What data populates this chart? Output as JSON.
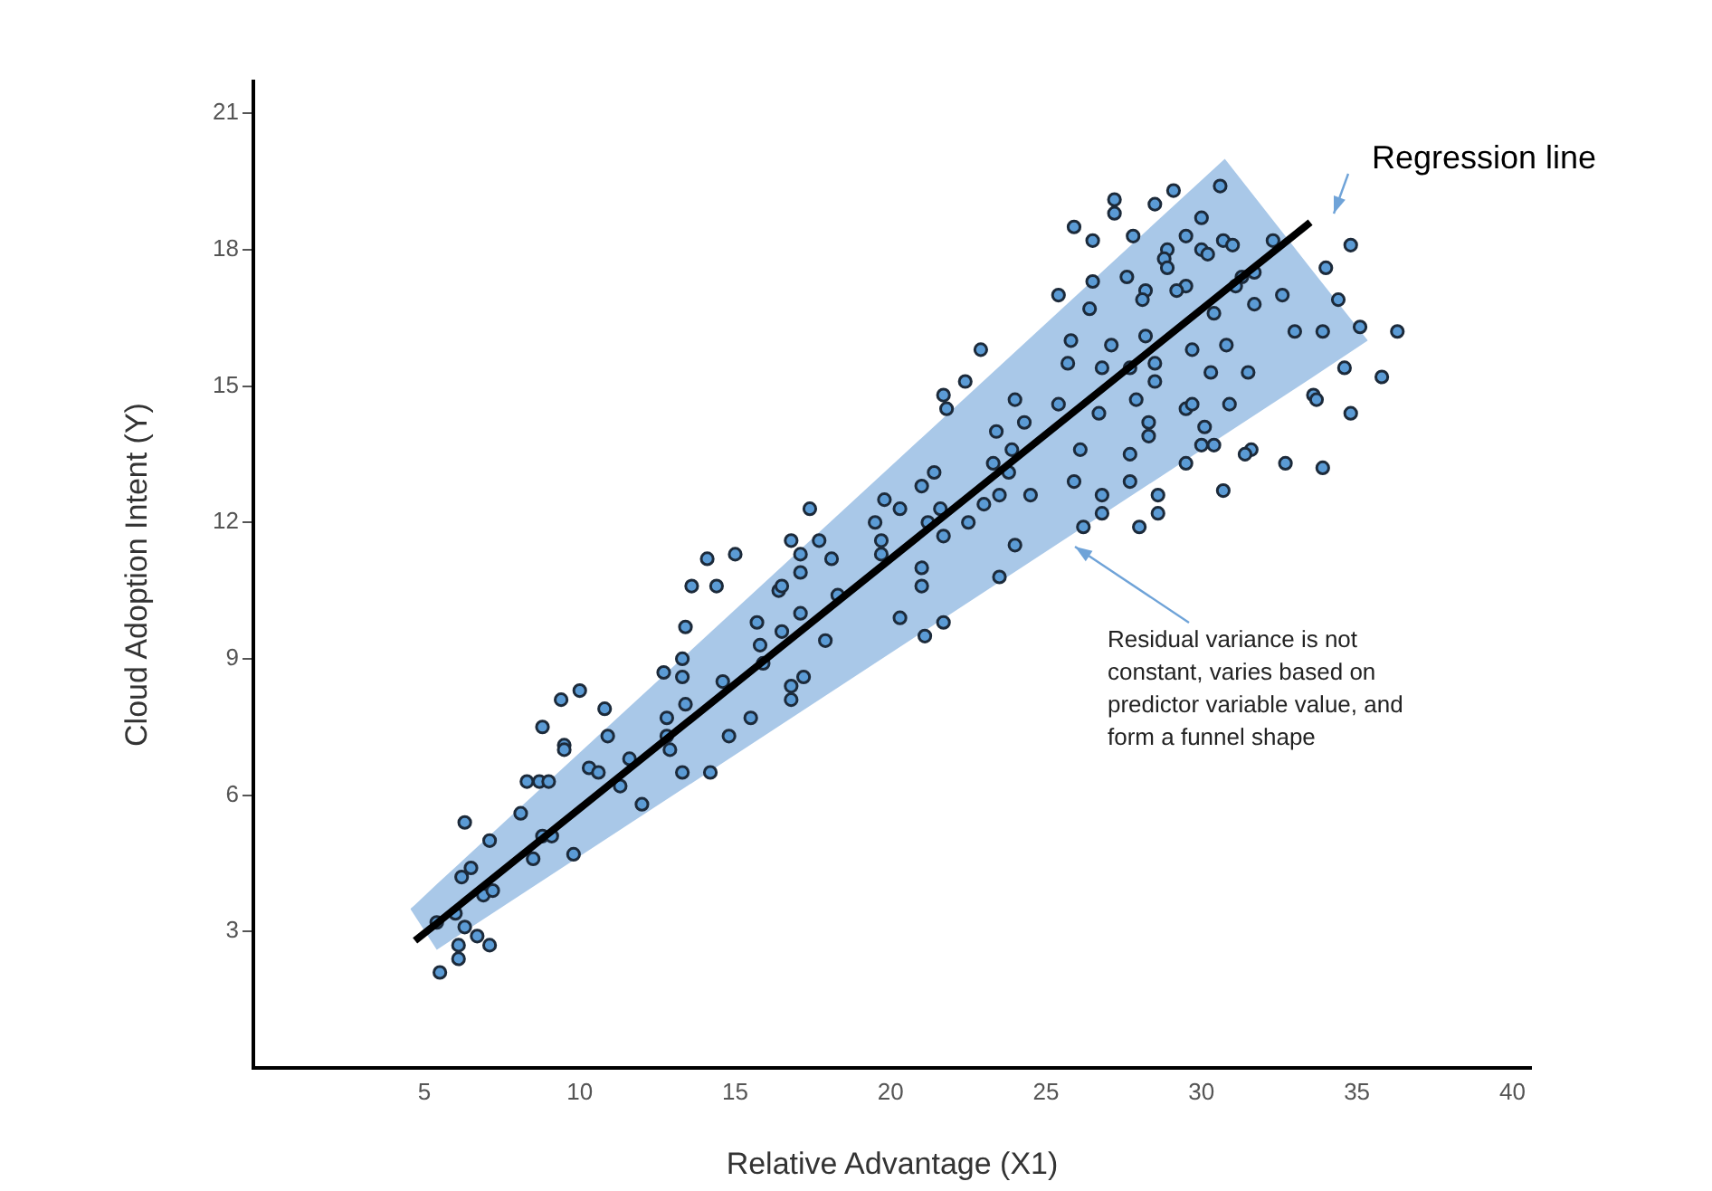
{
  "chart_data": {
    "type": "scatter",
    "xlabel": "Relative Advantage (X1)",
    "ylabel": "Cloud Adoption Intent (Y)",
    "xlim": [
      -0.5,
      40.6
    ],
    "xticks": [
      5,
      10,
      15,
      20,
      25,
      30,
      35,
      40
    ],
    "ylim": [
      0,
      21.7
    ],
    "yticks": [
      3,
      6,
      9,
      12,
      15,
      18,
      21
    ],
    "grid": false,
    "legend": false,
    "marker": "circle",
    "annotations": [
      "Regression line",
      "Residual variance is not constant, varies based on predictor variable value, and form a funnel shape"
    ],
    "series": [
      {
        "color": "#5b9bd5",
        "x": [
          5.5,
          6.1,
          7.1,
          6.7,
          6.1,
          6.3,
          5.4,
          6.0,
          6.9,
          7.2,
          6.2,
          6.5,
          8.5,
          9.8,
          6.3,
          7.1,
          8.1,
          8.8,
          9.1,
          8.3,
          8.7,
          9.0,
          8.8,
          9.5,
          9.5,
          9.4,
          10.0,
          10.8,
          10.3,
          10.6,
          10.9,
          11.3,
          11.6,
          12.0,
          12.8,
          12.8,
          12.9,
          13.3,
          14.2,
          14.8,
          15.5,
          13.4,
          13.3,
          14.6,
          12.7,
          13.3,
          13.4,
          13.6,
          14.4,
          14.1,
          15.0,
          15.7,
          15.8,
          15.9,
          16.5,
          16.4,
          16.5,
          16.8,
          16.8,
          16.8,
          17.4,
          17.1,
          17.1,
          17.7,
          18.1,
          18.3,
          17.1,
          17.9,
          17.2,
          19.5,
          19.7,
          19.7,
          19.8,
          20.3,
          21.0,
          21.4,
          21.2,
          21.6,
          21.7,
          22.5,
          21.0,
          21.0,
          20.3,
          21.1,
          21.7,
          23.5,
          24.0,
          23.0,
          23.5,
          23.3,
          23.8,
          23.9,
          24.5,
          23.4,
          24.0,
          24.3,
          25.4,
          25.7,
          25.8,
          25.9,
          26.1,
          21.8,
          21.7,
          22.4,
          22.9,
          25.4,
          30.6,
          29.1,
          28.5,
          27.2,
          27.2,
          25.9,
          26.5,
          27.8,
          30.0,
          29.5,
          30.7,
          31.0,
          32.3,
          28.9,
          28.8,
          28.9,
          30.0,
          30.2,
          31.3,
          31.7,
          31.1,
          29.5,
          29.2,
          28.2,
          28.1,
          27.6,
          26.5,
          26.4,
          31.7,
          32.6,
          30.4,
          33.0,
          33.9,
          34.4,
          34.0,
          34.8,
          35.1,
          36.3,
          34.6,
          35.8,
          33.6,
          33.7,
          34.8,
          27.1,
          28.2,
          29.7,
          30.8,
          26.8,
          27.7,
          28.5,
          28.5,
          30.3,
          31.5,
          26.7,
          27.9,
          28.3,
          28.3,
          29.5,
          29.7,
          30.9,
          30.1,
          30.0,
          30.4,
          27.7,
          29.5,
          31.6,
          31.4,
          32.7,
          33.9,
          27.7,
          26.8,
          28.6,
          26.8,
          28.6,
          30.7,
          26.2,
          28.0
        ],
        "values": [
          2.1,
          2.4,
          2.7,
          2.9,
          2.7,
          3.1,
          3.2,
          3.4,
          3.8,
          3.9,
          4.2,
          4.4,
          4.6,
          4.7,
          5.4,
          5.0,
          5.6,
          5.1,
          5.1,
          6.3,
          6.3,
          6.3,
          7.5,
          7.1,
          7.0,
          8.1,
          8.3,
          7.9,
          6.6,
          6.5,
          7.3,
          6.2,
          6.8,
          5.8,
          7.7,
          7.3,
          7.0,
          6.5,
          6.5,
          7.3,
          7.7,
          8.0,
          8.6,
          8.5,
          8.7,
          9.0,
          9.7,
          10.6,
          10.6,
          11.2,
          11.3,
          9.8,
          9.3,
          8.9,
          9.6,
          10.5,
          10.6,
          11.6,
          8.4,
          8.1,
          12.3,
          11.3,
          10.9,
          11.6,
          11.2,
          10.4,
          10.0,
          9.4,
          8.6,
          12.0,
          11.6,
          11.3,
          12.5,
          12.3,
          12.8,
          13.1,
          12.0,
          12.3,
          11.7,
          12.0,
          11.0,
          10.6,
          9.9,
          9.5,
          9.8,
          10.8,
          11.5,
          12.4,
          12.6,
          13.3,
          13.1,
          13.6,
          12.6,
          14.0,
          14.7,
          14.2,
          14.6,
          15.5,
          16.0,
          12.9,
          13.6,
          14.5,
          14.8,
          15.1,
          15.8,
          17.0,
          19.4,
          19.3,
          19.0,
          19.1,
          18.8,
          18.5,
          18.2,
          18.3,
          18.7,
          18.3,
          18.2,
          18.1,
          18.2,
          18.0,
          17.8,
          17.6,
          18.0,
          17.9,
          17.4,
          17.5,
          17.2,
          17.2,
          17.1,
          17.1,
          16.9,
          17.4,
          17.3,
          16.7,
          16.8,
          17.0,
          16.6,
          16.2,
          16.2,
          16.9,
          17.6,
          18.1,
          16.3,
          16.2,
          15.4,
          15.2,
          14.8,
          14.7,
          14.4,
          15.9,
          16.1,
          15.8,
          15.9,
          15.4,
          15.4,
          15.5,
          15.1,
          15.3,
          15.3,
          14.4,
          14.7,
          14.2,
          13.9,
          14.5,
          14.6,
          14.6,
          14.1,
          13.7,
          13.7,
          13.5,
          13.3,
          13.6,
          13.5,
          13.3,
          13.2,
          12.9,
          12.6,
          12.6,
          12.2,
          12.2,
          12.7,
          11.9,
          11.9
        ]
      },
      {
        "type": "line",
        "marker": "none",
        "color": "#000000",
        "x": [
          4.55,
          4.7,
          5.4,
          30.75,
          33.5,
          35.35
        ],
        "values": [
          null,
          2.8,
          3.18,
          17.1,
          18.6,
          null
        ],
        "lower": [
          3.5,
          3.34,
          2.6,
          13.93,
          15.16,
          16.0
        ],
        "upper": [
          3.5,
          3.59,
          4.04,
          20.0,
          17.6,
          16.0
        ]
      }
    ]
  }
}
